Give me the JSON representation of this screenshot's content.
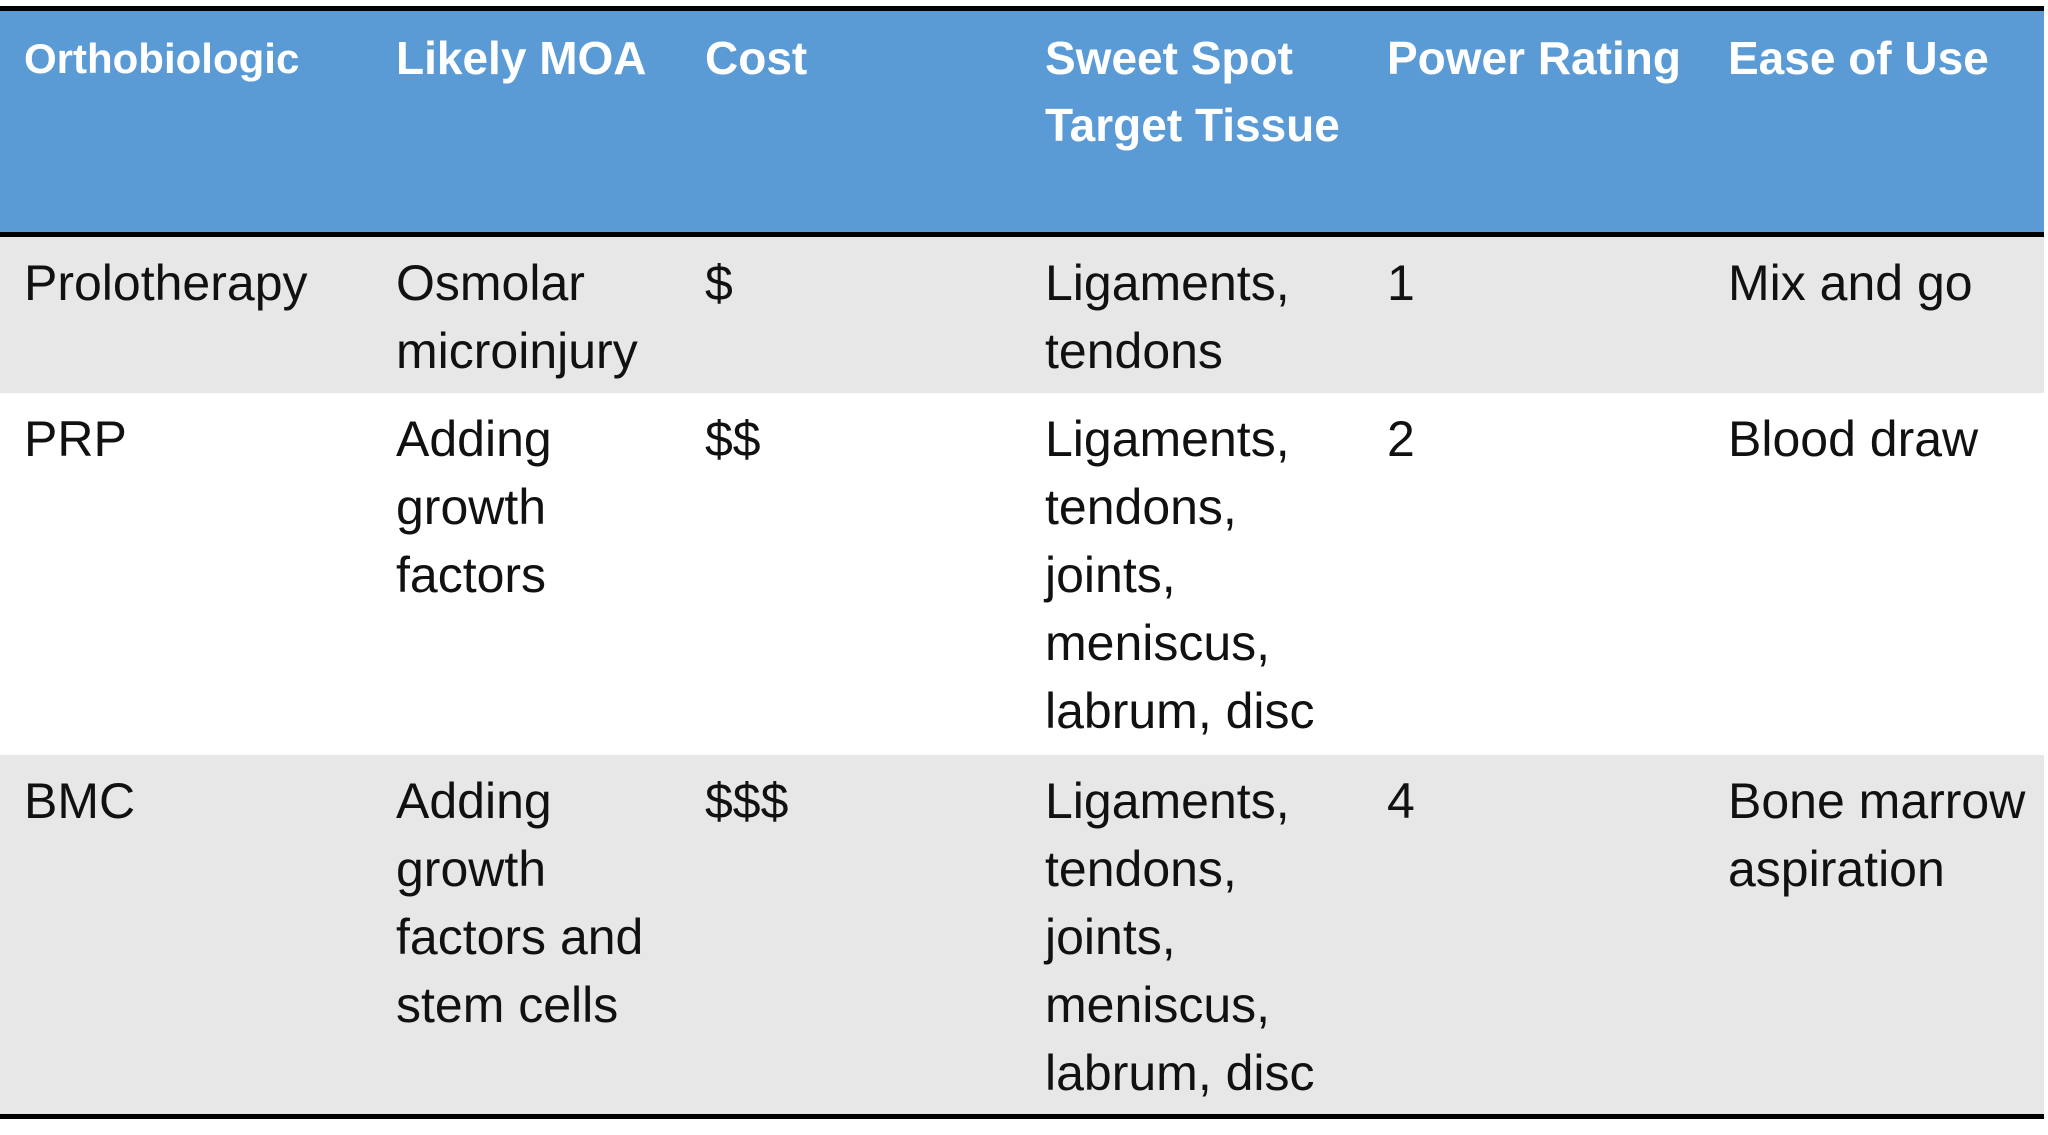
{
  "table": {
    "header": [
      "Orthobiologic",
      "Likely MOA",
      "Cost",
      "Sweet Spot Target Tissue",
      "Power Rating",
      "Ease of Use"
    ],
    "rows": [
      [
        "Prolotherapy",
        "Osmolar microinjury",
        "$",
        "Ligaments, tendons",
        "1",
        "Mix and go"
      ],
      [
        "PRP",
        "Adding growth factors",
        "$$",
        "Ligaments, tendons, joints, meniscus, labrum, disc",
        "2",
        "Blood draw"
      ],
      [
        "BMC",
        "Adding growth factors and stem cells",
        "$$$",
        "Ligaments, tendons, joints, meniscus, labrum, disc",
        "4",
        "Bone marrow aspiration"
      ]
    ]
  }
}
